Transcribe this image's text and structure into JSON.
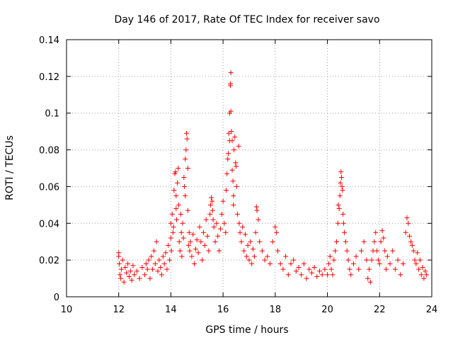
{
  "chart_data": {
    "type": "scatter",
    "title": "Day 146 of 2017, Rate Of TEC Index for receiver savo",
    "xlabel": "GPS time / hours",
    "ylabel": "ROTI / TECUs",
    "xlim": [
      10,
      24
    ],
    "ylim": [
      0,
      0.14
    ],
    "x_ticks": [
      "10",
      "12",
      "14",
      "16",
      "18",
      "20",
      "22",
      "24"
    ],
    "y_ticks": [
      "0",
      "0.02",
      "0.04",
      "0.06",
      "0.08",
      "0.1",
      "0.12",
      "0.14"
    ],
    "grid": true,
    "marker": "+",
    "color": "#ff0000",
    "points": [
      [
        12.0,
        0.024
      ],
      [
        12.0,
        0.022
      ],
      [
        12.02,
        0.018
      ],
      [
        12.05,
        0.012
      ],
      [
        12.08,
        0.01
      ],
      [
        12.1,
        0.015
      ],
      [
        12.15,
        0.02
      ],
      [
        12.2,
        0.008
      ],
      [
        12.25,
        0.016
      ],
      [
        12.3,
        0.013
      ],
      [
        12.35,
        0.018
      ],
      [
        12.4,
        0.011
      ],
      [
        12.45,
        0.014
      ],
      [
        12.5,
        0.009
      ],
      [
        12.55,
        0.017
      ],
      [
        12.6,
        0.012
      ],
      [
        12.7,
        0.014
      ],
      [
        12.8,
        0.01
      ],
      [
        12.9,
        0.016
      ],
      [
        13.0,
        0.012
      ],
      [
        13.05,
        0.018
      ],
      [
        13.1,
        0.015
      ],
      [
        13.15,
        0.02
      ],
      [
        13.2,
        0.01
      ],
      [
        13.25,
        0.022
      ],
      [
        13.3,
        0.015
      ],
      [
        13.35,
        0.025
      ],
      [
        13.4,
        0.018
      ],
      [
        13.45,
        0.03
      ],
      [
        13.5,
        0.014
      ],
      [
        13.55,
        0.02
      ],
      [
        13.6,
        0.016
      ],
      [
        13.65,
        0.012
      ],
      [
        13.7,
        0.022
      ],
      [
        13.75,
        0.018
      ],
      [
        13.8,
        0.024
      ],
      [
        13.85,
        0.015
      ],
      [
        13.9,
        0.028
      ],
      [
        13.95,
        0.02
      ],
      [
        14.0,
        0.04
      ],
      [
        14.0,
        0.032
      ],
      [
        14.02,
        0.025
      ],
      [
        14.05,
        0.045
      ],
      [
        14.08,
        0.035
      ],
      [
        14.1,
        0.038
      ],
      [
        14.12,
        0.058
      ],
      [
        14.15,
        0.067
      ],
      [
        14.18,
        0.068
      ],
      [
        14.2,
        0.055
      ],
      [
        14.2,
        0.048
      ],
      [
        14.22,
        0.042
      ],
      [
        14.25,
        0.062
      ],
      [
        14.28,
        0.07
      ],
      [
        14.3,
        0.05
      ],
      [
        14.32,
        0.03
      ],
      [
        14.35,
        0.025
      ],
      [
        14.38,
        0.045
      ],
      [
        14.4,
        0.035
      ],
      [
        14.42,
        0.022
      ],
      [
        14.45,
        0.04
      ],
      [
        14.48,
        0.032
      ],
      [
        14.5,
        0.065
      ],
      [
        14.52,
        0.06
      ],
      [
        14.55,
        0.055
      ],
      [
        14.55,
        0.075
      ],
      [
        14.58,
        0.08
      ],
      [
        14.6,
        0.089
      ],
      [
        14.62,
        0.086
      ],
      [
        14.65,
        0.07
      ],
      [
        14.65,
        0.047
      ],
      [
        14.68,
        0.028
      ],
      [
        14.7,
        0.035
      ],
      [
        14.72,
        0.025
      ],
      [
        14.75,
        0.03
      ],
      [
        14.8,
        0.022
      ],
      [
        14.85,
        0.034
      ],
      [
        14.9,
        0.018
      ],
      [
        14.95,
        0.026
      ],
      [
        15.0,
        0.031
      ],
      [
        15.05,
        0.024
      ],
      [
        15.1,
        0.038
      ],
      [
        15.15,
        0.03
      ],
      [
        15.2,
        0.02
      ],
      [
        15.25,
        0.035
      ],
      [
        15.3,
        0.028
      ],
      [
        15.35,
        0.042
      ],
      [
        15.4,
        0.033
      ],
      [
        15.45,
        0.025
      ],
      [
        15.5,
        0.045
      ],
      [
        15.52,
        0.05
      ],
      [
        15.55,
        0.054
      ],
      [
        15.58,
        0.052
      ],
      [
        15.6,
        0.047
      ],
      [
        15.62,
        0.042
      ],
      [
        15.65,
        0.038
      ],
      [
        15.7,
        0.03
      ],
      [
        15.75,
        0.04
      ],
      [
        15.8,
        0.033
      ],
      [
        15.85,
        0.025
      ],
      [
        15.9,
        0.037
      ],
      [
        15.95,
        0.045
      ],
      [
        16.0,
        0.052
      ],
      [
        16.05,
        0.04
      ],
      [
        16.1,
        0.035
      ],
      [
        16.12,
        0.058
      ],
      [
        16.15,
        0.067
      ],
      [
        16.18,
        0.075
      ],
      [
        16.2,
        0.078
      ],
      [
        16.22,
        0.089
      ],
      [
        16.25,
        0.1
      ],
      [
        16.25,
        0.085
      ],
      [
        16.28,
        0.115
      ],
      [
        16.28,
        0.116
      ],
      [
        16.3,
        0.122
      ],
      [
        16.3,
        0.101
      ],
      [
        16.32,
        0.09
      ],
      [
        16.35,
        0.085
      ],
      [
        16.35,
        0.069
      ],
      [
        16.38,
        0.063
      ],
      [
        16.4,
        0.055
      ],
      [
        16.4,
        0.05
      ],
      [
        16.42,
        0.08
      ],
      [
        16.45,
        0.087
      ],
      [
        16.48,
        0.073
      ],
      [
        16.5,
        0.071
      ],
      [
        16.52,
        0.06
      ],
      [
        16.55,
        0.045
      ],
      [
        16.6,
        0.082
      ],
      [
        16.62,
        0.04
      ],
      [
        16.65,
        0.035
      ],
      [
        16.7,
        0.03
      ],
      [
        16.75,
        0.038
      ],
      [
        16.8,
        0.025
      ],
      [
        16.85,
        0.034
      ],
      [
        16.9,
        0.022
      ],
      [
        16.95,
        0.028
      ],
      [
        17.0,
        0.02
      ],
      [
        17.05,
        0.03
      ],
      [
        17.1,
        0.018
      ],
      [
        17.15,
        0.026
      ],
      [
        17.2,
        0.022
      ],
      [
        17.25,
        0.035
      ],
      [
        17.28,
        0.049
      ],
      [
        17.3,
        0.047
      ],
      [
        17.35,
        0.042
      ],
      [
        17.4,
        0.03
      ],
      [
        17.5,
        0.025
      ],
      [
        17.6,
        0.02
      ],
      [
        17.7,
        0.022
      ],
      [
        17.8,
        0.018
      ],
      [
        17.9,
        0.03
      ],
      [
        18.0,
        0.038
      ],
      [
        18.05,
        0.035
      ],
      [
        18.1,
        0.025
      ],
      [
        18.2,
        0.018
      ],
      [
        18.3,
        0.015
      ],
      [
        18.4,
        0.022
      ],
      [
        18.5,
        0.012
      ],
      [
        18.6,
        0.018
      ],
      [
        18.7,
        0.02
      ],
      [
        18.8,
        0.014
      ],
      [
        18.9,
        0.016
      ],
      [
        19.0,
        0.012
      ],
      [
        19.1,
        0.018
      ],
      [
        19.2,
        0.01
      ],
      [
        19.3,
        0.015
      ],
      [
        19.4,
        0.013
      ],
      [
        19.5,
        0.016
      ],
      [
        19.6,
        0.011
      ],
      [
        19.7,
        0.014
      ],
      [
        19.8,
        0.012
      ],
      [
        19.9,
        0.015
      ],
      [
        20.0,
        0.012
      ],
      [
        20.05,
        0.018
      ],
      [
        20.1,
        0.022
      ],
      [
        20.15,
        0.015
      ],
      [
        20.2,
        0.012
      ],
      [
        20.25,
        0.02
      ],
      [
        20.3,
        0.025
      ],
      [
        20.35,
        0.03
      ],
      [
        20.4,
        0.04
      ],
      [
        20.42,
        0.05
      ],
      [
        20.45,
        0.048
      ],
      [
        20.48,
        0.055
      ],
      [
        20.5,
        0.062
      ],
      [
        20.52,
        0.068
      ],
      [
        20.54,
        0.065
      ],
      [
        20.56,
        0.06
      ],
      [
        20.58,
        0.058
      ],
      [
        20.6,
        0.045
      ],
      [
        20.62,
        0.04
      ],
      [
        20.65,
        0.035
      ],
      [
        20.7,
        0.03
      ],
      [
        20.75,
        0.025
      ],
      [
        20.8,
        0.02
      ],
      [
        20.85,
        0.015
      ],
      [
        20.9,
        0.012
      ],
      [
        21.0,
        0.018
      ],
      [
        21.1,
        0.022
      ],
      [
        21.2,
        0.015
      ],
      [
        21.3,
        0.025
      ],
      [
        21.4,
        0.03
      ],
      [
        21.5,
        0.02
      ],
      [
        21.55,
        0.01
      ],
      [
        21.6,
        0.015
      ],
      [
        21.65,
        0.008
      ],
      [
        21.7,
        0.02
      ],
      [
        21.75,
        0.025
      ],
      [
        21.8,
        0.03
      ],
      [
        21.85,
        0.035
      ],
      [
        21.9,
        0.025
      ],
      [
        21.95,
        0.02
      ],
      [
        22.0,
        0.018
      ],
      [
        22.05,
        0.03
      ],
      [
        22.1,
        0.036
      ],
      [
        22.15,
        0.032
      ],
      [
        22.2,
        0.025
      ],
      [
        22.25,
        0.015
      ],
      [
        22.3,
        0.022
      ],
      [
        22.4,
        0.018
      ],
      [
        22.5,
        0.025
      ],
      [
        22.6,
        0.015
      ],
      [
        22.7,
        0.02
      ],
      [
        22.8,
        0.012
      ],
      [
        22.9,
        0.018
      ],
      [
        23.0,
        0.035
      ],
      [
        23.05,
        0.043
      ],
      [
        23.1,
        0.04
      ],
      [
        23.15,
        0.033
      ],
      [
        23.2,
        0.03
      ],
      [
        23.25,
        0.028
      ],
      [
        23.3,
        0.025
      ],
      [
        23.35,
        0.02
      ],
      [
        23.4,
        0.018
      ],
      [
        23.45,
        0.024
      ],
      [
        23.5,
        0.015
      ],
      [
        23.55,
        0.02
      ],
      [
        23.6,
        0.012
      ],
      [
        23.65,
        0.016
      ],
      [
        23.7,
        0.01
      ],
      [
        23.75,
        0.014
      ],
      [
        23.8,
        0.012
      ]
    ]
  }
}
